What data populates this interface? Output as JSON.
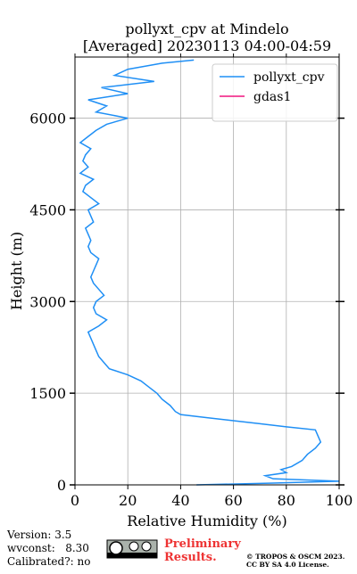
{
  "chart_data": {
    "type": "line",
    "title": [
      "pollyxt_cpv at Mindelo",
      "[Averaged] 20230113 04:00-04:59"
    ],
    "x_label": "Relative Humidity (%)",
    "y_label": "Height (m)",
    "xlim": [
      0,
      100
    ],
    "xticks": [
      0,
      20,
      40,
      60,
      80,
      100
    ],
    "ylim": [
      0,
      7000
    ],
    "yticks": [
      0,
      1500,
      3000,
      4500,
      6000
    ],
    "grid": true,
    "legend": "upper right",
    "y": [
      0,
      30,
      60,
      100,
      150,
      200,
      250,
      300,
      400,
      500,
      600,
      700,
      800,
      900,
      950,
      1000,
      1050,
      1100,
      1150,
      1200,
      1300,
      1400,
      1500,
      1600,
      1700,
      1800,
      1900,
      2000,
      2100,
      2200,
      2300,
      2400,
      2500,
      2600,
      2700,
      2800,
      2900,
      3000,
      3100,
      3200,
      3300,
      3400,
      3500,
      3600,
      3700,
      3800,
      3900,
      4000,
      4100,
      4200,
      4300,
      4400,
      4500,
      4600,
      4700,
      4800,
      4900,
      5000,
      5100,
      5200,
      5300,
      5400,
      5500,
      5600,
      5700,
      5800,
      5900,
      6000,
      6100,
      6200,
      6300,
      6400,
      6500,
      6600,
      6700,
      6800,
      6900,
      6950
    ],
    "series": [
      {
        "name": "pollyxt_cpv",
        "color": "#1f8ff5",
        "values": [
          46,
          75,
          100,
          75,
          72,
          80,
          78,
          82,
          86,
          88,
          91,
          93,
          92,
          91,
          80,
          70,
          60,
          50,
          40,
          38,
          36,
          33,
          31,
          28,
          25,
          20,
          13,
          11,
          9,
          8,
          7,
          6,
          5,
          9,
          12,
          8,
          7,
          8,
          11,
          9,
          7,
          6,
          7,
          8,
          9,
          6,
          5,
          6,
          5,
          4,
          7,
          6,
          5,
          9,
          6,
          3,
          4,
          7,
          2,
          5,
          3,
          4,
          6,
          2,
          5,
          8,
          12,
          20,
          8,
          12,
          5,
          20,
          10,
          30,
          15,
          20,
          33,
          45
        ]
      },
      {
        "name": "gdas1",
        "color": "#f0147f",
        "values": []
      }
    ],
    "footer": {
      "version": "Version: 3.5",
      "wvconst": "wvconst:   8.30",
      "calibrated": "Calibrated?: no",
      "preliminary": [
        "Preliminary",
        "Results."
      ],
      "copyright": [
        "© TROPOS & OSCM 2023.",
        "CC BY SA 4.0 License."
      ]
    }
  }
}
